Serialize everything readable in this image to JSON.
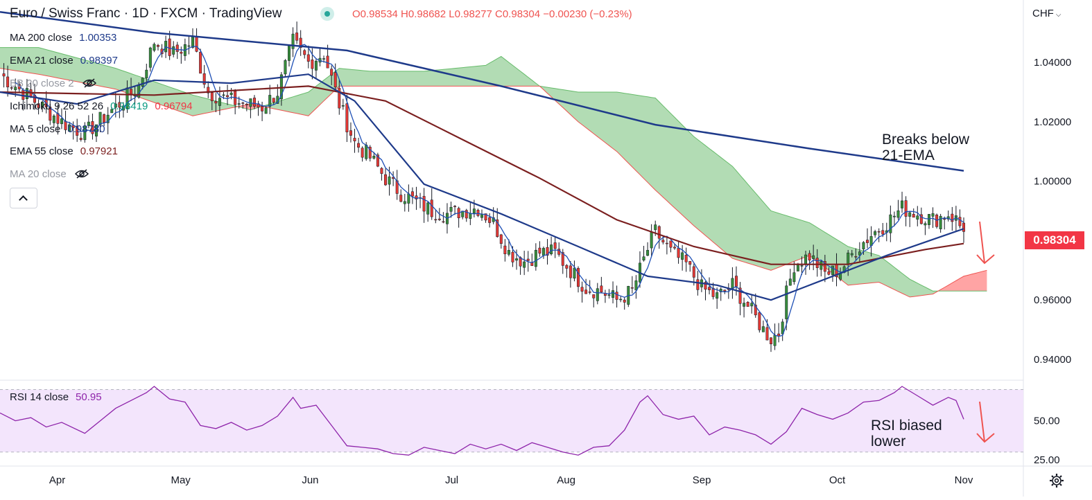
{
  "header": {
    "title": "Euro / Swiss Franc · 1D · FXCM · TradingView",
    "ohlc": "O0.98534 H0.98682 L0.98277 C0.98304 −0.00230 (−0.23%)",
    "currency": "CHF",
    "currency_icon": "chevron-down-icon"
  },
  "legend": {
    "ma200": {
      "label": "MA 200 close",
      "value": "1.00353",
      "color": "#1e3a8a"
    },
    "ema21": {
      "label": "EMA 21 close",
      "value": "0.98397",
      "color": "#1e3a8a"
    },
    "bb20": {
      "label": "BB 20 close 2",
      "hidden": true
    },
    "ichimoku": {
      "label": "Ichimoku 9 26 52 26",
      "value1": "0.98419",
      "value2": "0.96794",
      "color1": "#089981",
      "color2": "#f23645"
    },
    "ma5": {
      "label": "MA 5 close",
      "value": "0.98780",
      "color": "#1e3a8a"
    },
    "ema55": {
      "label": "EMA 55 close",
      "value": "0.97921",
      "color": "#7b1f1f"
    },
    "ma20": {
      "label": "MA 20 close",
      "hidden": true
    }
  },
  "annotations": {
    "breaks": [
      "Breaks below",
      "21-EMA"
    ],
    "rsi": [
      "RSI biased",
      "lower"
    ]
  },
  "last_price": "0.98304",
  "colors": {
    "up": "#388e3c",
    "down": "#e53935",
    "ma200": "#1e3a8a",
    "ema21": "#1e3a8a",
    "ma5": "#1e4fb5",
    "ema55": "#7b1f1f",
    "cloud_bear": "#ff9494",
    "cloud_bull": "#a5d6a7",
    "rsi": "#8e24aa",
    "arrow": "#ef5350"
  },
  "chart_data": [
    {
      "type": "candlestick",
      "title": "Euro / Swiss Franc · 1D · FXCM",
      "x_ticks": [
        "Apr",
        "May",
        "Jun",
        "Jul",
        "Aug",
        "Sep",
        "Oct",
        "Nov"
      ],
      "y_ticks": [
        "1.04000",
        "1.02000",
        "1.00000",
        "0.96000",
        "0.94000"
      ],
      "y_tick_values": [
        1.04,
        1.02,
        1.0,
        0.96,
        0.94
      ],
      "hidden_ticks": [
        "1.06000",
        "0.98000"
      ],
      "ylim": [
        0.933,
        1.061
      ],
      "price_anchors": [
        [
          0,
          1.036
        ],
        [
          8,
          1.028
        ],
        [
          16,
          1.02
        ],
        [
          22,
          1.016
        ],
        [
          30,
          1.025
        ],
        [
          36,
          1.032
        ],
        [
          40,
          1.047
        ],
        [
          45,
          1.043
        ],
        [
          50,
          1.047
        ],
        [
          54,
          1.03
        ],
        [
          60,
          1.027
        ],
        [
          64,
          1.026
        ],
        [
          68,
          1.025
        ],
        [
          72,
          1.03
        ],
        [
          76,
          1.047
        ],
        [
          80,
          1.04
        ],
        [
          84,
          1.043
        ],
        [
          88,
          1.026
        ],
        [
          92,
          1.013
        ],
        [
          96,
          1.008
        ],
        [
          100,
          1.001
        ],
        [
          104,
          0.996
        ],
        [
          108,
          0.993
        ],
        [
          112,
          0.99
        ],
        [
          116,
          0.989
        ],
        [
          120,
          0.99
        ],
        [
          124,
          0.991
        ],
        [
          128,
          0.986
        ],
        [
          132,
          0.976
        ],
        [
          136,
          0.973
        ],
        [
          140,
          0.976
        ],
        [
          144,
          0.976
        ],
        [
          148,
          0.97
        ],
        [
          152,
          0.964
        ],
        [
          156,
          0.963
        ],
        [
          160,
          0.96
        ],
        [
          164,
          0.963
        ],
        [
          168,
          0.977
        ],
        [
          170,
          0.983
        ],
        [
          174,
          0.976
        ],
        [
          178,
          0.972
        ],
        [
          182,
          0.964
        ],
        [
          186,
          0.961
        ],
        [
          190,
          0.965
        ],
        [
          194,
          0.958
        ],
        [
          198,
          0.95
        ],
        [
          200,
          0.947
        ],
        [
          202,
          0.949
        ],
        [
          204,
          0.962
        ],
        [
          206,
          0.972
        ],
        [
          210,
          0.975
        ],
        [
          214,
          0.969
        ],
        [
          218,
          0.97
        ],
        [
          222,
          0.977
        ],
        [
          226,
          0.982
        ],
        [
          230,
          0.986
        ],
        [
          234,
          0.991
        ],
        [
          238,
          0.989
        ],
        [
          242,
          0.987
        ],
        [
          246,
          0.989
        ],
        [
          248,
          0.987
        ],
        [
          250,
          0.983
        ]
      ],
      "ma200": [
        [
          0,
          1.057
        ],
        [
          40,
          1.05
        ],
        [
          90,
          1.044
        ],
        [
          130,
          1.032
        ],
        [
          170,
          1.019
        ],
        [
          210,
          1.011
        ],
        [
          250,
          1.0035
        ]
      ],
      "ema21": [
        [
          0,
          1.03
        ],
        [
          20,
          1.026
        ],
        [
          40,
          1.034
        ],
        [
          60,
          1.033
        ],
        [
          80,
          1.036
        ],
        [
          92,
          1.027
        ],
        [
          110,
          0.999
        ],
        [
          130,
          0.989
        ],
        [
          150,
          0.978
        ],
        [
          168,
          0.968
        ],
        [
          186,
          0.965
        ],
        [
          200,
          0.96
        ],
        [
          214,
          0.967
        ],
        [
          230,
          0.975
        ],
        [
          250,
          0.984
        ]
      ],
      "ema55": [
        [
          0,
          1.03
        ],
        [
          40,
          1.029
        ],
        [
          80,
          1.032
        ],
        [
          100,
          1.027
        ],
        [
          120,
          1.014
        ],
        [
          140,
          1.001
        ],
        [
          160,
          0.987
        ],
        [
          180,
          0.978
        ],
        [
          200,
          0.972
        ],
        [
          220,
          0.972
        ],
        [
          240,
          0.977
        ],
        [
          250,
          0.979
        ]
      ],
      "cloud": [
        [
          0,
          1.045,
          1.038
        ],
        [
          10,
          1.045,
          1.036
        ],
        [
          30,
          1.038,
          1.031
        ],
        [
          50,
          1.029,
          1.022
        ],
        [
          65,
          1.024,
          1.026
        ],
        [
          80,
          1.03,
          1.022
        ],
        [
          88,
          1.038,
          1.032
        ],
        [
          96,
          1.037,
          1.032
        ],
        [
          110,
          1.037,
          1.032
        ],
        [
          126,
          1.039,
          1.032
        ],
        [
          130,
          1.042,
          1.032
        ],
        [
          140,
          1.032,
          1.032
        ],
        [
          150,
          1.03,
          1.02
        ],
        [
          160,
          1.03,
          1.01
        ],
        [
          170,
          1.028,
          0.997
        ],
        [
          180,
          1.015,
          0.985
        ],
        [
          190,
          1.005,
          0.974
        ],
        [
          200,
          0.99,
          0.97
        ],
        [
          210,
          0.986,
          0.975
        ],
        [
          220,
          0.978,
          0.965
        ],
        [
          228,
          0.975,
          0.966
        ],
        [
          236,
          0.967,
          0.961
        ],
        [
          242,
          0.963,
          0.962
        ],
        [
          250,
          0.963,
          0.968
        ],
        [
          256,
          0.963,
          0.97
        ]
      ]
    },
    {
      "type": "line",
      "title": "RSI 14 close",
      "last_value": "50.95",
      "y_ticks": [
        "50.00",
        "25.00"
      ],
      "y_tick_values": [
        50,
        25
      ],
      "ylim": [
        21,
        76
      ],
      "band": [
        30,
        70
      ],
      "values": [
        [
          0,
          55
        ],
        [
          4,
          50
        ],
        [
          8,
          52
        ],
        [
          12,
          46
        ],
        [
          16,
          49
        ],
        [
          22,
          42
        ],
        [
          26,
          50
        ],
        [
          30,
          58
        ],
        [
          34,
          63
        ],
        [
          38,
          68
        ],
        [
          40,
          72
        ],
        [
          44,
          64
        ],
        [
          48,
          62
        ],
        [
          52,
          47
        ],
        [
          56,
          45
        ],
        [
          60,
          49
        ],
        [
          64,
          44
        ],
        [
          68,
          47
        ],
        [
          72,
          53
        ],
        [
          76,
          65
        ],
        [
          78,
          58
        ],
        [
          82,
          60
        ],
        [
          86,
          47
        ],
        [
          90,
          34
        ],
        [
          94,
          33
        ],
        [
          98,
          32
        ],
        [
          102,
          29
        ],
        [
          106,
          28
        ],
        [
          110,
          33
        ],
        [
          114,
          31
        ],
        [
          118,
          29
        ],
        [
          122,
          35
        ],
        [
          126,
          32
        ],
        [
          130,
          35
        ],
        [
          134,
          31
        ],
        [
          138,
          36
        ],
        [
          142,
          33
        ],
        [
          146,
          30
        ],
        [
          150,
          28
        ],
        [
          154,
          33
        ],
        [
          158,
          34
        ],
        [
          162,
          44
        ],
        [
          166,
          62
        ],
        [
          168,
          66
        ],
        [
          172,
          54
        ],
        [
          176,
          51
        ],
        [
          180,
          53
        ],
        [
          184,
          41
        ],
        [
          188,
          46
        ],
        [
          192,
          44
        ],
        [
          196,
          41
        ],
        [
          200,
          35
        ],
        [
          204,
          43
        ],
        [
          208,
          58
        ],
        [
          212,
          54
        ],
        [
          216,
          51
        ],
        [
          220,
          55
        ],
        [
          224,
          62
        ],
        [
          228,
          63
        ],
        [
          232,
          68
        ],
        [
          234,
          72
        ],
        [
          238,
          66
        ],
        [
          242,
          60
        ],
        [
          246,
          65
        ],
        [
          248,
          63
        ],
        [
          250,
          51
        ]
      ]
    }
  ]
}
